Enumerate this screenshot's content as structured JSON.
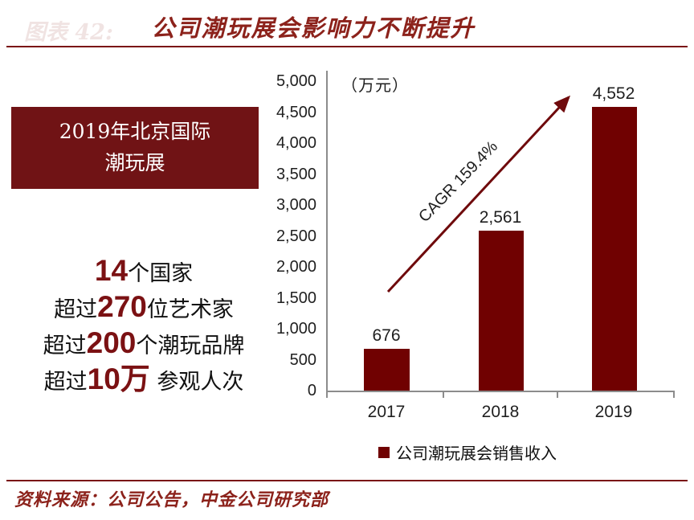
{
  "figure": {
    "faint_label": "图表 42:"
  },
  "header": {
    "title": "公司潮玩展会影响力不断提升"
  },
  "highlight_box": {
    "line1": "2019年北京国际",
    "line2": "潮玩展"
  },
  "stats": [
    {
      "prefix": "",
      "number": "14",
      "suffix": "个国家"
    },
    {
      "prefix": "超过",
      "number": "270",
      "suffix": "位艺术家"
    },
    {
      "prefix": "超过",
      "number": "200",
      "suffix": "个潮玩品牌"
    },
    {
      "prefix": "超过",
      "number": "10万",
      "suffix": " 参观人次"
    }
  ],
  "chart_data": {
    "type": "bar",
    "title": "公司潮玩展会影响力不断提升",
    "unit_label": "（万元）",
    "categories": [
      "2017",
      "2018",
      "2019"
    ],
    "values": [
      676,
      2561,
      4552
    ],
    "value_labels": [
      "676",
      "2,561",
      "4,552"
    ],
    "series": [
      {
        "name": "公司潮玩展会销售收入",
        "values": [
          676,
          2561,
          4552
        ]
      }
    ],
    "yticks": [
      "5,000",
      "4,500",
      "4,000",
      "3,500",
      "3,000",
      "2,500",
      "2,000",
      "1,500",
      "1,000",
      "500",
      "0"
    ],
    "ylim": [
      0,
      5000
    ],
    "grid": false,
    "legend": "公司潮玩展会销售收入",
    "legend_position": "bottom",
    "annotation": "CAGR 159.4%",
    "xlabel": "",
    "ylabel": "万元"
  },
  "footer": {
    "source": "资料来源：公司公告，中金公司研究部"
  },
  "colors": {
    "bar": "#700101",
    "highlight_box": "#701315",
    "accent_text": "#8C221B",
    "rule": "#7A1315",
    "arrow": "#6F0A0C",
    "stat_number": "#7B1113",
    "axis": "#8c8c8c"
  }
}
